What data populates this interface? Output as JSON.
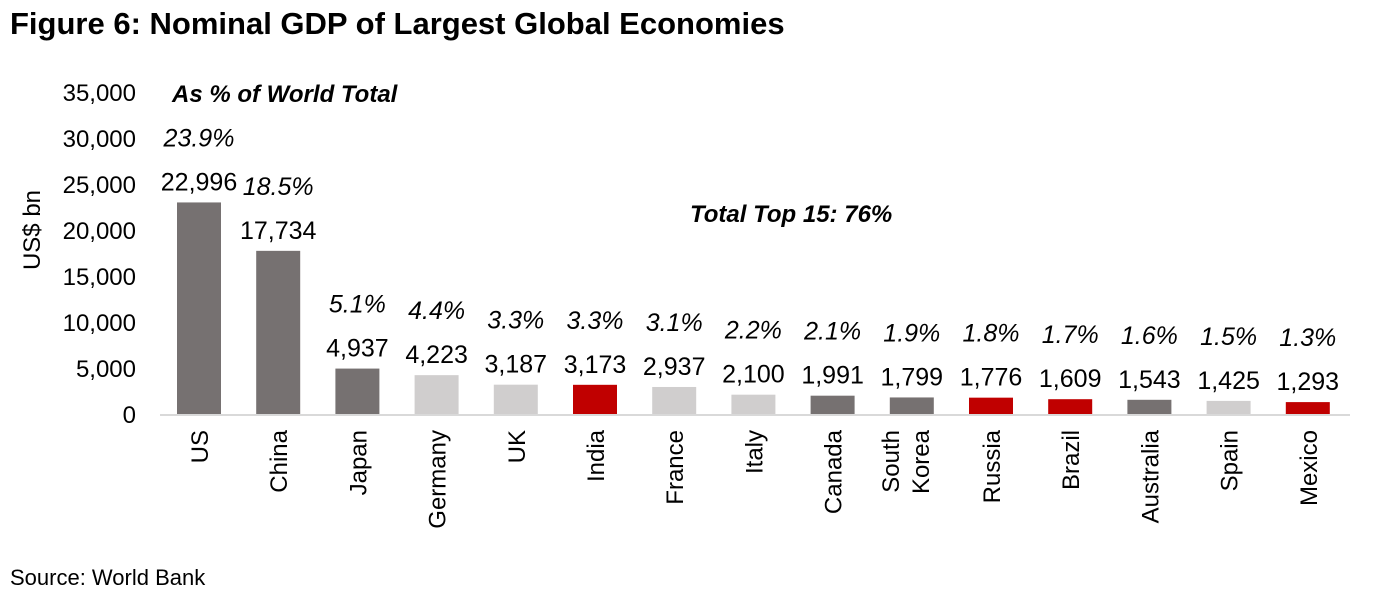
{
  "chart_data": {
    "type": "bar",
    "title": "Figure 6: Nominal GDP of Largest Global Economies",
    "subtitle": "As % of World Total",
    "annotation": "Total Top 15: 76%",
    "ylabel": "US$ bn",
    "xlabel": "",
    "ylim": [
      0,
      35000
    ],
    "yticks": [
      "0",
      "5,000",
      "10,000",
      "15,000",
      "20,000",
      "25,000",
      "30,000",
      "35,000"
    ],
    "ytick_values": [
      0,
      5000,
      10000,
      15000,
      20000,
      25000,
      30000,
      35000
    ],
    "grid": false,
    "categories": [
      "US",
      "China",
      "Japan",
      "Germany",
      "UK",
      "India",
      "France",
      "Italy",
      "Canada",
      "South Korea",
      "Russia",
      "Brazil",
      "Australia",
      "Spain",
      "Mexico"
    ],
    "values": [
      22996,
      17734,
      4937,
      4223,
      3187,
      3173,
      2937,
      2100,
      1991,
      1799,
      1776,
      1609,
      1543,
      1425,
      1293
    ],
    "value_labels": [
      "22,996",
      "17,734",
      "4,937",
      "4,223",
      "3,187",
      "3,173",
      "2,937",
      "2,100",
      "1,991",
      "1,799",
      "1,776",
      "1,609",
      "1,543",
      "1,425",
      "1,293"
    ],
    "share_labels": [
      "23.9%",
      "18.5%",
      "5.1%",
      "4.4%",
      "3.3%",
      "3.3%",
      "3.1%",
      "2.2%",
      "2.1%",
      "1.9%",
      "1.8%",
      "1.7%",
      "1.6%",
      "1.5%",
      "1.3%"
    ],
    "bar_colors": [
      "#767171",
      "#767171",
      "#767171",
      "#d0cece",
      "#d0cece",
      "#c00000",
      "#d0cece",
      "#d0cece",
      "#767171",
      "#767171",
      "#c00000",
      "#c00000",
      "#767171",
      "#d0cece",
      "#c00000"
    ]
  },
  "source": "Source: World Bank"
}
